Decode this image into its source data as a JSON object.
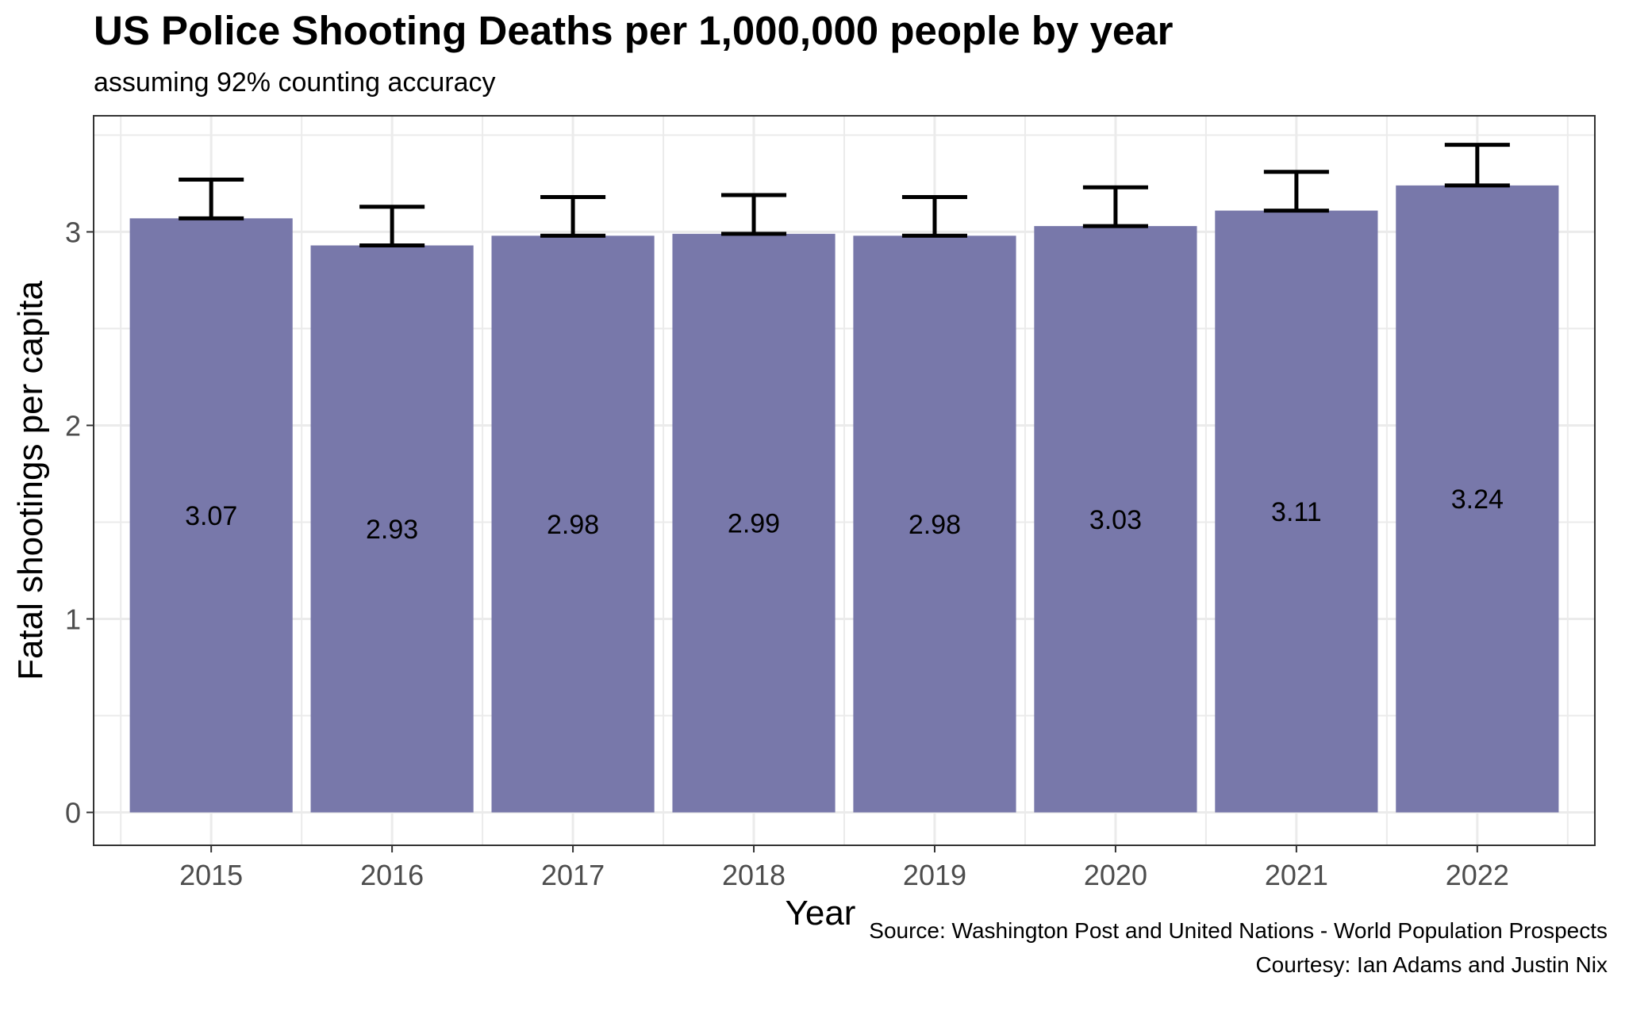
{
  "title": "US Police Shooting Deaths per 1,000,000 people by year",
  "subtitle": "assuming 92% counting accuracy",
  "caption": {
    "line1": "Source: Washington Post and United Nations - World Population Prospects",
    "line2": "Courtesy: Ian Adams and Justin Nix"
  },
  "colors": {
    "bar": "#7878aa",
    "error_bar": "#000000",
    "grid": "#ebebeb",
    "panel_border": "#333333"
  },
  "chart_data": {
    "type": "bar",
    "xlabel": "Year",
    "ylabel": "Fatal shootings per capita",
    "categories": [
      "2015",
      "2016",
      "2017",
      "2018",
      "2019",
      "2020",
      "2021",
      "2022"
    ],
    "values": [
      3.07,
      2.93,
      2.98,
      2.99,
      2.98,
      3.03,
      3.11,
      3.24
    ],
    "labels": [
      "3.07",
      "2.93",
      "2.98",
      "2.99",
      "2.98",
      "3.03",
      "3.11",
      "3.24"
    ],
    "error_bars": {
      "lower": [
        3.07,
        2.93,
        2.98,
        2.99,
        2.98,
        3.03,
        3.11,
        3.24
      ],
      "upper": [
        3.27,
        3.13,
        3.18,
        3.19,
        3.18,
        3.23,
        3.31,
        3.45
      ]
    },
    "yticks": [
      "0",
      "1",
      "2",
      "3"
    ],
    "ylim": [
      -0.17,
      3.6
    ],
    "grid": true,
    "legend": "none"
  }
}
